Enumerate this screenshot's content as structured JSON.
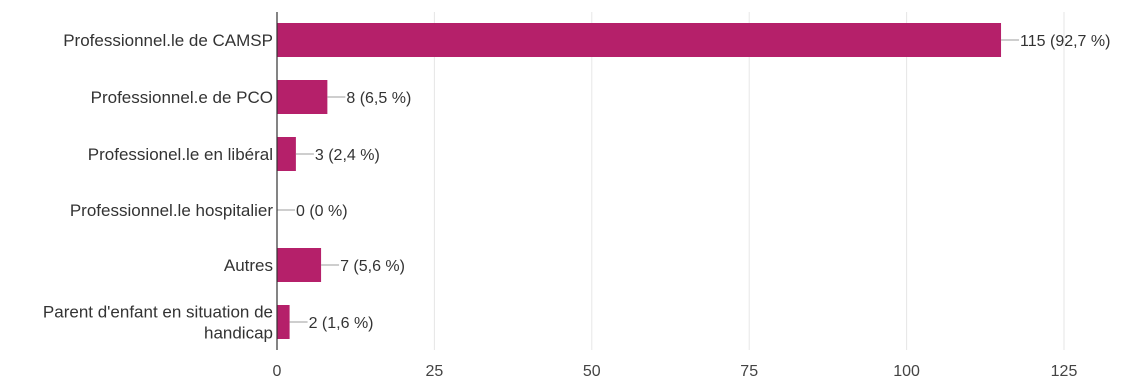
{
  "chart_data": {
    "type": "bar",
    "orientation": "horizontal",
    "categories": [
      [
        "Professionnel.le de CAMSP"
      ],
      [
        "Professionnel.e de PCO"
      ],
      [
        "Professionel.le en libéral"
      ],
      [
        "Professionnel.le hospitalier"
      ],
      [
        "Autres"
      ],
      [
        "Parent d'enfant en situation de",
        "handicap"
      ]
    ],
    "values": [
      115,
      8,
      3,
      0,
      7,
      2
    ],
    "value_labels": [
      "115 (92,7 %)",
      "8 (6,5 %)",
      "3 (2,4 %)",
      "0 (0 %)",
      "7 (5,6 %)",
      "2 (1,6 %)"
    ],
    "xlim": [
      0,
      125
    ],
    "xticks": [
      0,
      25,
      50,
      75,
      100,
      125
    ],
    "xlabel": "",
    "ylabel": "",
    "title": "",
    "grid": true,
    "colors": {
      "bar": "#b5206a",
      "grid": "#e6e6e6",
      "axis": "#333333",
      "leader": "#9e9e9e"
    }
  }
}
